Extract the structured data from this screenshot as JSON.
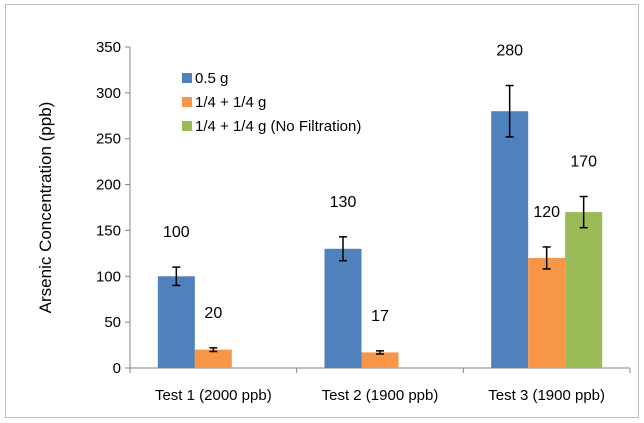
{
  "chart_data": {
    "type": "bar",
    "title": "",
    "xlabel": "",
    "ylabel": "Arsenic Concentration (ppb)",
    "ylim": [
      0,
      350
    ],
    "yticks": [
      0,
      50,
      100,
      150,
      200,
      250,
      300,
      350
    ],
    "grid": false,
    "legend_position": "top-left",
    "categories": [
      "Test 1 (2000 ppb)",
      "Test 2 (1900 ppb)",
      "Test 3 (1900 ppb)"
    ],
    "series": [
      {
        "name": "0.5 g",
        "color": "#4f81bd",
        "values": [
          100,
          130,
          280
        ],
        "errors": [
          10,
          13,
          28
        ],
        "labels": [
          "100",
          "130",
          "280"
        ]
      },
      {
        "name": "1/4 + 1/4 g",
        "color": "#f79646",
        "values": [
          20,
          17,
          120
        ],
        "errors": [
          2,
          1.7,
          12
        ],
        "labels": [
          "20",
          "17",
          "120"
        ]
      },
      {
        "name": "1/4 + 1/4 g (No Filtration)",
        "color": "#9bbb59",
        "values": [
          null,
          null,
          170
        ],
        "errors": [
          null,
          null,
          17
        ],
        "labels": [
          "",
          "",
          "170"
        ]
      }
    ]
  }
}
